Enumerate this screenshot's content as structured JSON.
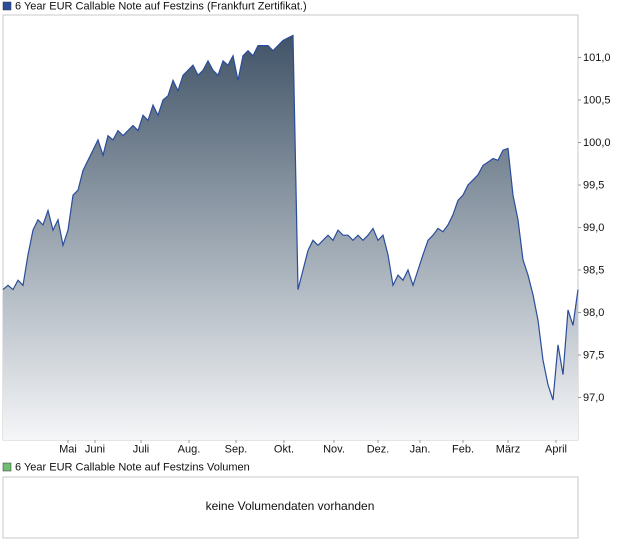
{
  "chart_data": {
    "type": "area",
    "series": [
      {
        "name": "6 Year EUR Callable Note auf Festzins (Frankfurt Zertifikat.)",
        "color": "#2a4d9c",
        "values": [
          98.27,
          98.32,
          98.27,
          98.38,
          98.32,
          98.68,
          98.97,
          99.09,
          99.03,
          99.2,
          98.97,
          99.09,
          98.79,
          98.97,
          99.38,
          99.44,
          99.67,
          99.79,
          99.91,
          100.03,
          99.85,
          100.08,
          100.03,
          100.14,
          100.08,
          100.14,
          100.2,
          100.14,
          100.32,
          100.26,
          100.44,
          100.32,
          100.5,
          100.55,
          100.73,
          100.61,
          100.79,
          100.85,
          100.91,
          100.79,
          100.85,
          100.96,
          100.85,
          100.79,
          100.96,
          100.91,
          101.02,
          100.73,
          101.02,
          101.08,
          101.02,
          101.14,
          101.14,
          101.14,
          101.08,
          101.14,
          101.2,
          101.23,
          101.26,
          98.27,
          98.5,
          98.73,
          98.85,
          98.79,
          98.85,
          98.91,
          98.85,
          98.97,
          98.91,
          98.91,
          98.85,
          98.91,
          98.85,
          98.91,
          98.99,
          98.85,
          98.91,
          98.68,
          98.32,
          98.44,
          98.38,
          98.5,
          98.32,
          98.5,
          98.68,
          98.85,
          98.91,
          98.99,
          98.95,
          99.03,
          99.15,
          99.32,
          99.38,
          99.5,
          99.56,
          99.62,
          99.73,
          99.77,
          99.81,
          99.79,
          99.91,
          99.93,
          99.38,
          99.09,
          98.62,
          98.44,
          98.21,
          97.91,
          97.44,
          97.15,
          96.97,
          97.62,
          97.27,
          98.03,
          97.85,
          98.27
        ]
      }
    ],
    "xlim": [
      0,
      115
    ],
    "xticks": [
      {
        "value": 13,
        "label": "Mai"
      },
      {
        "value": 18.4,
        "label": "Juni"
      },
      {
        "value": 27.6,
        "label": "Juli"
      },
      {
        "value": 37.2,
        "label": "Aug."
      },
      {
        "value": 46.6,
        "label": "Sep."
      },
      {
        "value": 56.2,
        "label": "Okt."
      },
      {
        "value": 66.2,
        "label": "Nov."
      },
      {
        "value": 75,
        "label": "Dez."
      },
      {
        "value": 83.4,
        "label": "Jan."
      },
      {
        "value": 92,
        "label": "Feb."
      },
      {
        "value": 101,
        "label": "März"
      },
      {
        "value": 110.6,
        "label": "April"
      }
    ],
    "ylim": [
      96.5,
      101.5
    ],
    "yticks": [
      {
        "value": 97,
        "label": "97,0"
      },
      {
        "value": 97.5,
        "label": "97,5"
      },
      {
        "value": 98,
        "label": "98,0"
      },
      {
        "value": 98.5,
        "label": "98,5"
      },
      {
        "value": 99,
        "label": "99,0"
      },
      {
        "value": 99.5,
        "label": "99,5"
      },
      {
        "value": 100,
        "label": "100,0"
      },
      {
        "value": 100.5,
        "label": "100,5"
      },
      {
        "value": 101,
        "label": "101,0"
      }
    ],
    "grid": false
  },
  "volume_panel": {
    "label": "6 Year EUR Callable Note auf Festzins Volumen",
    "color": "#6fbf73",
    "message": "keine Volumendaten vorhanden"
  }
}
